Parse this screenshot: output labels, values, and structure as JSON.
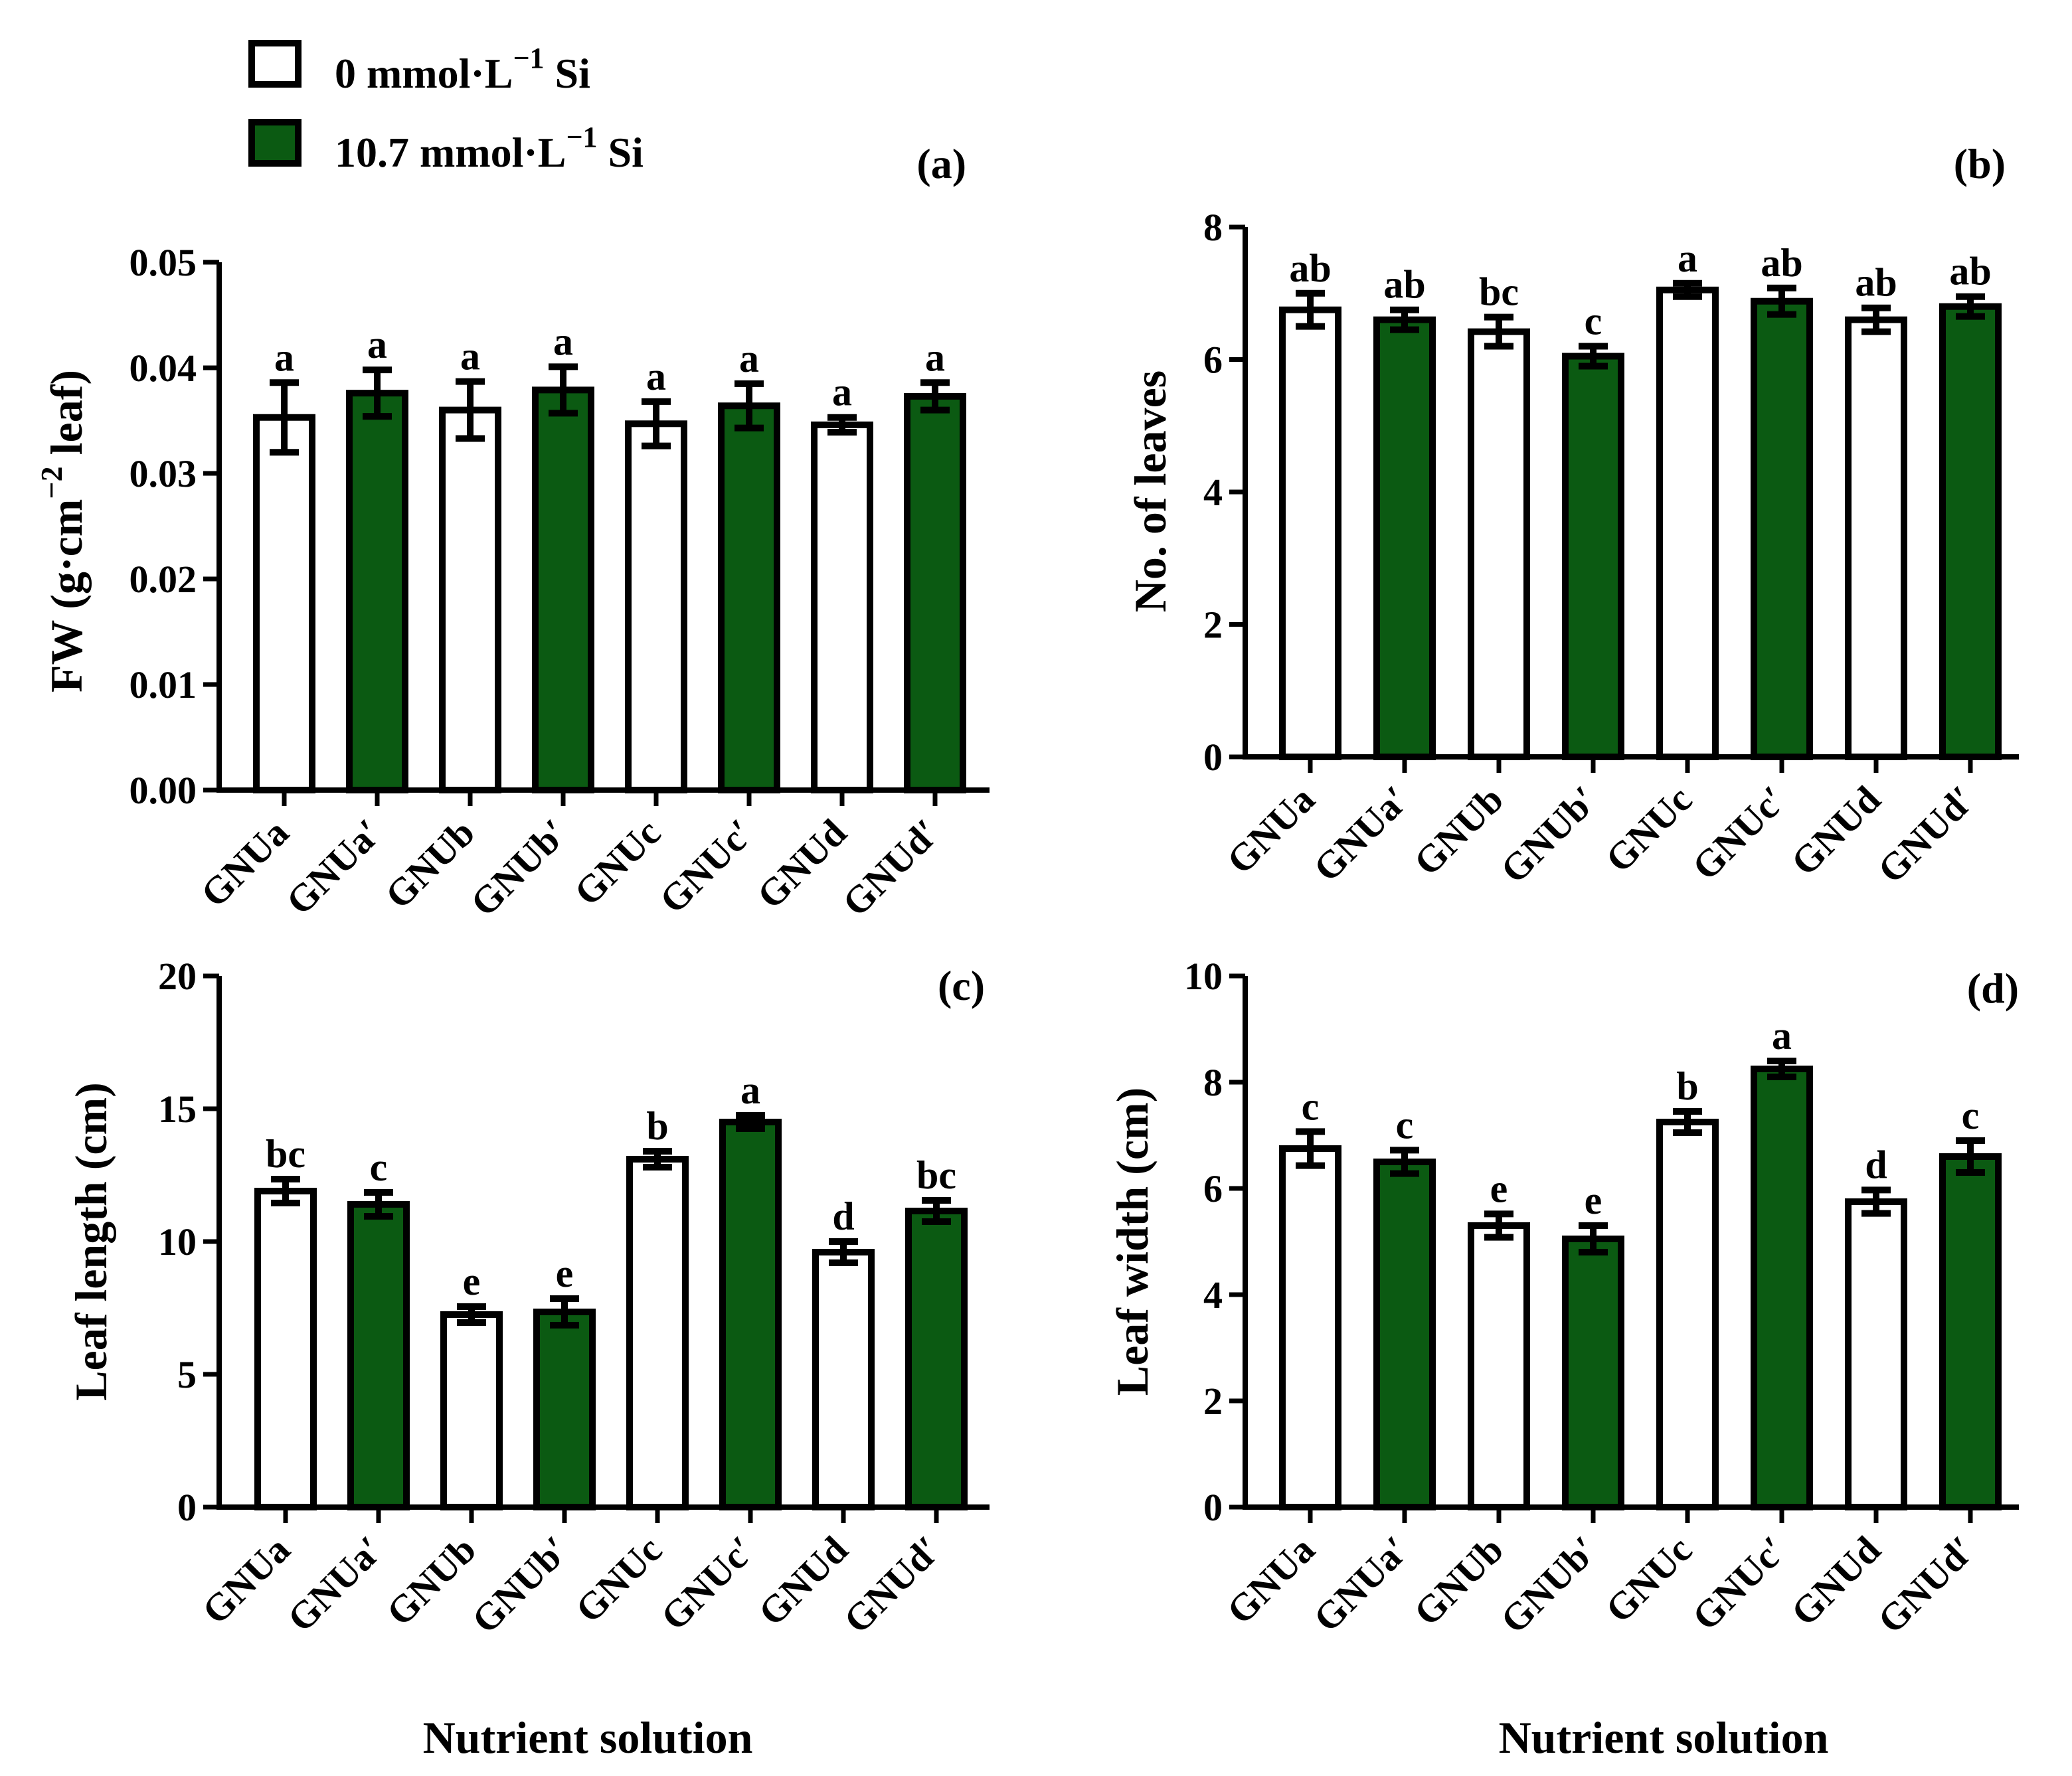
{
  "legend": {
    "items": [
      {
        "label": "0 mmol·L",
        "sup": "−1",
        "suffix": " Si",
        "color": "#ffffff"
      },
      {
        "label": "10.7 mmol·L",
        "sup": "−1",
        "suffix": " Si",
        "color": "#0b5a12"
      }
    ]
  },
  "colors": {
    "control": "#ffffff",
    "silicon": "#0b5a12",
    "axis": "#000000"
  },
  "xlabel_common": "Nutrient solution",
  "chart_data": [
    {
      "type": "bar",
      "panel": "(a)",
      "categories": [
        "GNUa",
        "GNUa′",
        "GNUb",
        "GNUb′",
        "GNUc",
        "GNUc′",
        "GNUd",
        "GNUd′"
      ],
      "values": [
        0.0353,
        0.0376,
        0.036,
        0.0379,
        0.0347,
        0.0364,
        0.0346,
        0.0373
      ],
      "errors": [
        0.0033,
        0.0022,
        0.0027,
        0.0022,
        0.0021,
        0.0021,
        0.0007,
        0.0013
      ],
      "letters": [
        "a",
        "a",
        "a",
        "a",
        "a",
        "a",
        "a",
        "a"
      ],
      "ylabel": "FW (g·cm",
      "ylabel_sup": "−2",
      "ylabel_suffix": " leaf)",
      "ylim": [
        0,
        0.05
      ],
      "yticks": [
        "0.00",
        "0.01",
        "0.02",
        "0.03",
        "0.04",
        "0.05"
      ],
      "yticks_values": [
        0,
        0.01,
        0.02,
        0.03,
        0.04,
        0.05
      ],
      "xlabel": ""
    },
    {
      "type": "bar",
      "panel": "(b)",
      "categories": [
        "GNUa",
        "GNUa′",
        "GNUb",
        "GNUb′",
        "GNUc",
        "GNUc′",
        "GNUd",
        "GNUd′"
      ],
      "values": [
        6.75,
        6.6,
        6.42,
        6.05,
        7.05,
        6.88,
        6.6,
        6.8
      ],
      "errors": [
        0.25,
        0.15,
        0.22,
        0.15,
        0.1,
        0.2,
        0.18,
        0.15
      ],
      "letters": [
        "ab",
        "ab",
        "bc",
        "c",
        "a",
        "ab",
        "ab",
        "ab"
      ],
      "ylabel": "No. of leaves",
      "ylim": [
        0,
        8
      ],
      "yticks": [
        "0",
        "2",
        "4",
        "6",
        "8"
      ],
      "yticks_values": [
        0,
        2,
        4,
        6,
        8
      ],
      "xlabel": ""
    },
    {
      "type": "bar",
      "panel": "(c)",
      "categories": [
        "GNUa",
        "GNUa′",
        "GNUb",
        "GNUb′",
        "GNUc",
        "GNUc′",
        "GNUd",
        "GNUd′"
      ],
      "values": [
        11.9,
        11.4,
        7.25,
        7.35,
        13.1,
        14.5,
        9.6,
        11.15
      ],
      "errors": [
        0.45,
        0.45,
        0.3,
        0.5,
        0.3,
        0.25,
        0.4,
        0.4
      ],
      "letters": [
        "bc",
        "c",
        "e",
        "e",
        "b",
        "a",
        "d",
        "bc"
      ],
      "ylabel": "Leaf length (cm)",
      "ylim": [
        0,
        20
      ],
      "yticks": [
        "0",
        "5",
        "10",
        "15",
        "20"
      ],
      "yticks_values": [
        0,
        5,
        10,
        15,
        20
      ],
      "xlabel": "Nutrient solution"
    },
    {
      "type": "bar",
      "panel": "(d)",
      "categories": [
        "GNUa",
        "GNUa′",
        "GNUb",
        "GNUb′",
        "GNUc",
        "GNUc′",
        "GNUd",
        "GNUd′"
      ],
      "values": [
        6.75,
        6.5,
        5.3,
        5.05,
        7.25,
        8.25,
        5.75,
        6.6
      ],
      "errors": [
        0.32,
        0.22,
        0.22,
        0.25,
        0.2,
        0.15,
        0.22,
        0.3
      ],
      "letters": [
        "c",
        "c",
        "e",
        "e",
        "b",
        "a",
        "d",
        "c"
      ],
      "ylabel": "Leaf width (cm)",
      "ylim": [
        0,
        10
      ],
      "yticks": [
        "0",
        "2",
        "4",
        "6",
        "8",
        "10"
      ],
      "yticks_values": [
        0,
        2,
        4,
        6,
        8,
        10
      ],
      "xlabel": "Nutrient solution"
    }
  ]
}
